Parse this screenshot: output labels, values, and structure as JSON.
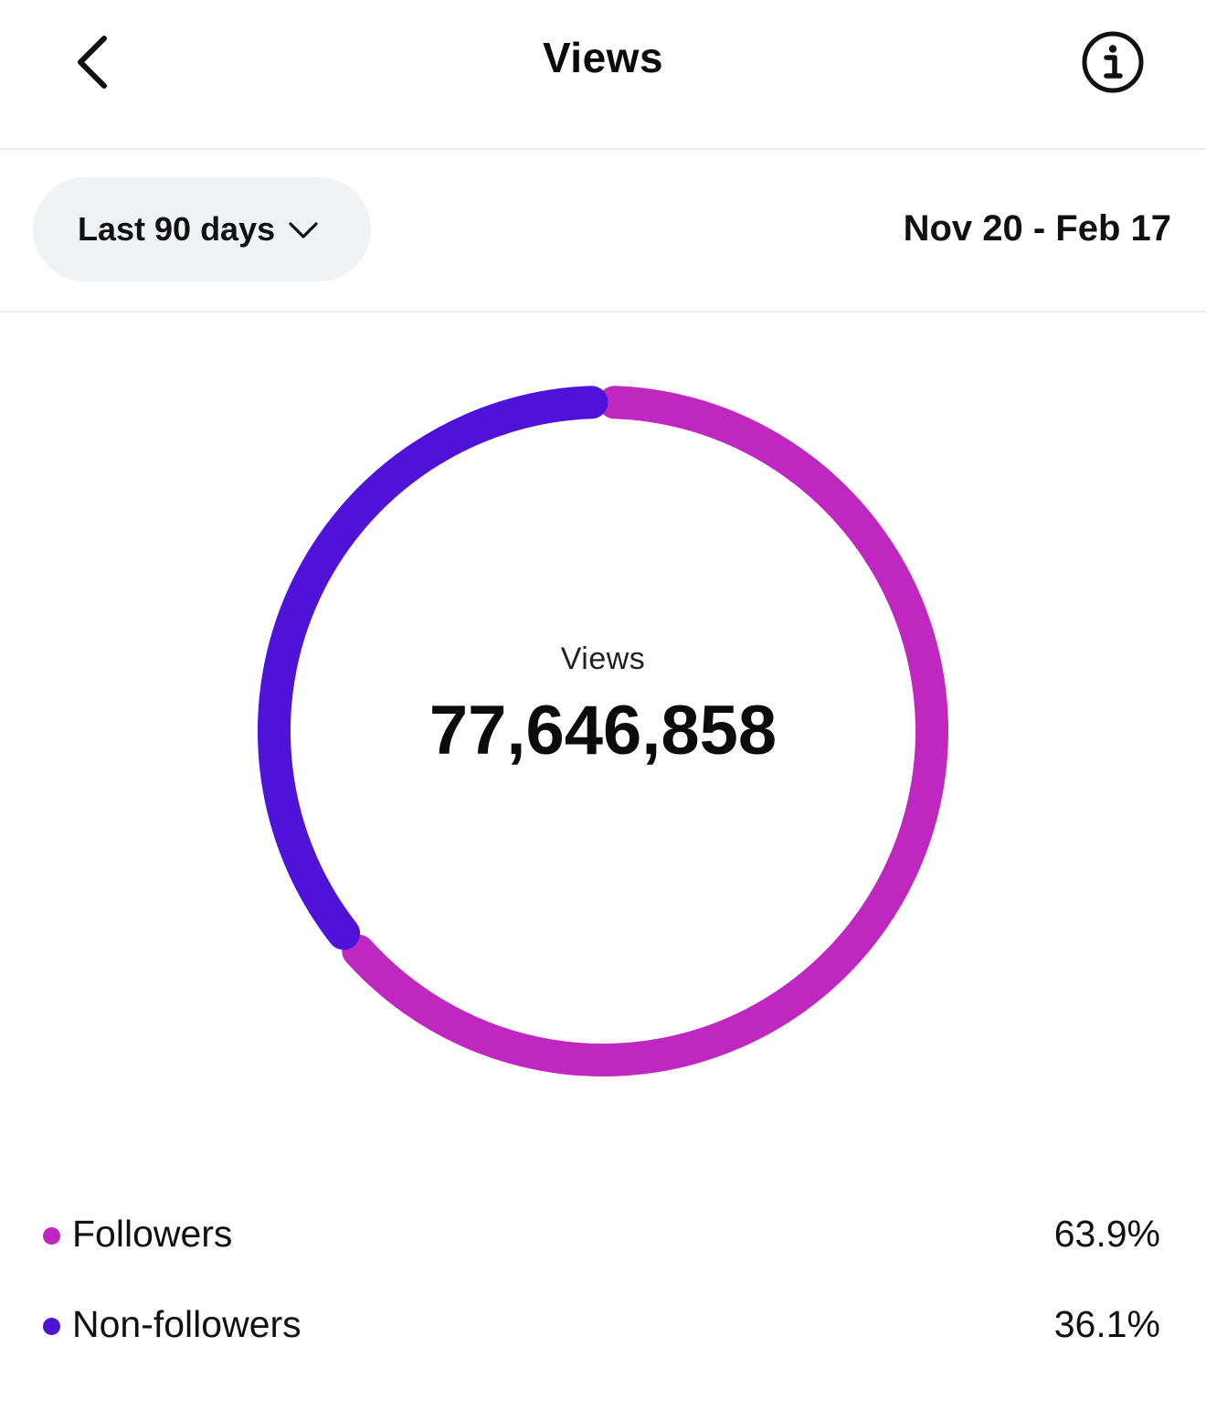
{
  "header": {
    "title": "Views",
    "back_icon": "chevron-left-icon",
    "info_icon": "info-circle-icon"
  },
  "filter": {
    "range_label": "Last 90 days",
    "dropdown_icon": "chevron-down-icon",
    "date_range": "Nov 20 - Feb 17"
  },
  "summary": {
    "label": "Views",
    "value": "77,646,858"
  },
  "chart_data": {
    "type": "pie",
    "title": "Views",
    "total": "77,646,858",
    "series": [
      {
        "name": "Followers",
        "value": 63.9,
        "label": "63.9%",
        "color": "#c026c0"
      },
      {
        "name": "Non-followers",
        "value": 36.1,
        "label": "36.1%",
        "color": "#4f12d8"
      }
    ],
    "legend_position": "bottom"
  },
  "legend": [
    {
      "label": "Followers",
      "value": "63.9%",
      "color": "#c026c0"
    },
    {
      "label": "Non-followers",
      "value": "36.1%",
      "color": "#4f12d8"
    }
  ]
}
